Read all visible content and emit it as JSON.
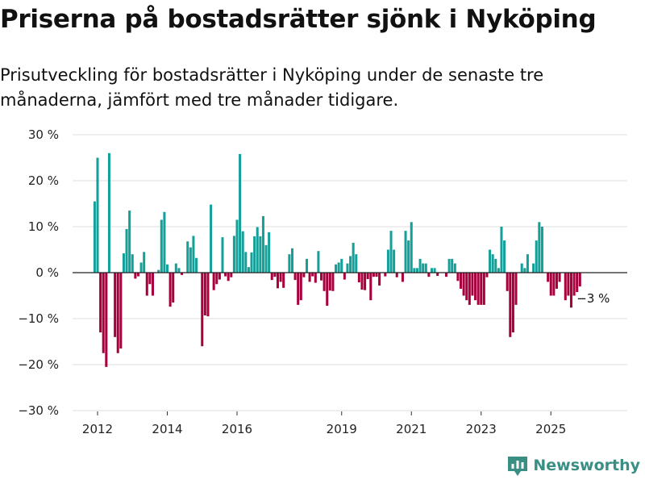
{
  "title": "Priserna på bostadsrätter sjönk i Nyköping",
  "subtitle": "Prisutveckling för bostadsrätter i Nyköping under de senaste tre månaderna, jämfört med tre månader tidigare.",
  "brand": {
    "name": "Newsworthy"
  },
  "colors": {
    "positive": "#14a099",
    "negative": "#a8003d",
    "grid": "#dddddd",
    "brand": "#3a8f84"
  },
  "chart_data": {
    "type": "bar",
    "title": "Priserna på bostadsrätter sjönk i Nyköping",
    "xlabel": "",
    "ylabel": "",
    "ylim": [
      -30,
      30
    ],
    "yticks": [
      30,
      20,
      10,
      0,
      -10,
      -20,
      -30
    ],
    "ytick_labels": [
      "30 %",
      "20 %",
      "10 %",
      "0 %",
      "−10 %",
      "−20 %",
      "−30 %"
    ],
    "xticks": [
      {
        "year": 2012,
        "label": "2012"
      },
      {
        "year": 2014,
        "label": "2014"
      },
      {
        "year": 2016,
        "label": "2016"
      },
      {
        "year": 2019,
        "label": "2019"
      },
      {
        "year": 2021,
        "label": "2021"
      },
      {
        "year": 2023,
        "label": "2023"
      },
      {
        "year": 2025,
        "label": "2025"
      }
    ],
    "start": {
      "year": 2011,
      "month": 12
    },
    "values": [
      15.5,
      25,
      -13,
      -17.5,
      -20.5,
      26,
      0,
      -14,
      -17.5,
      -16.5,
      4.2,
      9.5,
      13.5,
      4,
      -1.3,
      -0.8,
      2.2,
      4.5,
      -5,
      -2.5,
      -5,
      0,
      0.6,
      11.5,
      13.2,
      1.8,
      -7.4,
      -6.5,
      2,
      1,
      -0.5,
      0,
      6.8,
      5.5,
      8,
      3.2,
      0,
      -16,
      -9.3,
      -9.5,
      14.8,
      -3.8,
      -2.5,
      -1.5,
      7.7,
      -0.8,
      -1.8,
      -1,
      8,
      11.5,
      25.8,
      9,
      4.5,
      1.2,
      4.4,
      7.9,
      9.9,
      7.9,
      12.3,
      6,
      8.8,
      -1.6,
      -0.9,
      -3.4,
      -2,
      -3.3,
      0,
      4,
      5.3,
      -1.6,
      -7,
      -6,
      -1,
      3,
      -2,
      -0.8,
      -2.2,
      4.7,
      -1.7,
      -4,
      -7.2,
      -3.9,
      -4,
      1.8,
      2.2,
      3,
      -1.5,
      2,
      3.6,
      6.5,
      4,
      -2.1,
      -3.7,
      -3.8,
      -1.4,
      -6,
      -0.9,
      -0.9,
      -2.8,
      0,
      -0.8,
      5,
      9.1,
      5,
      -1,
      0,
      -2,
      9.1,
      7,
      11,
      1,
      1,
      3,
      2,
      2,
      -0.9,
      1,
      1,
      -0.7,
      0,
      0,
      -0.9,
      3,
      3,
      2,
      -1.8,
      -3.5,
      -5,
      -6,
      -7,
      -5,
      -6,
      -7,
      -7,
      -7,
      -1,
      5,
      4,
      3,
      1,
      10,
      7,
      -4,
      -14,
      -13,
      -7,
      0,
      2,
      1,
      4,
      0,
      2,
      7,
      11,
      10,
      0,
      -2,
      -5,
      -5,
      -3.5,
      -2,
      0,
      -6,
      -5,
      -7.6,
      -5,
      -5,
      -3
    ],
    "annotations": [
      {
        "text": "−3 %",
        "index": "last"
      }
    ]
  }
}
